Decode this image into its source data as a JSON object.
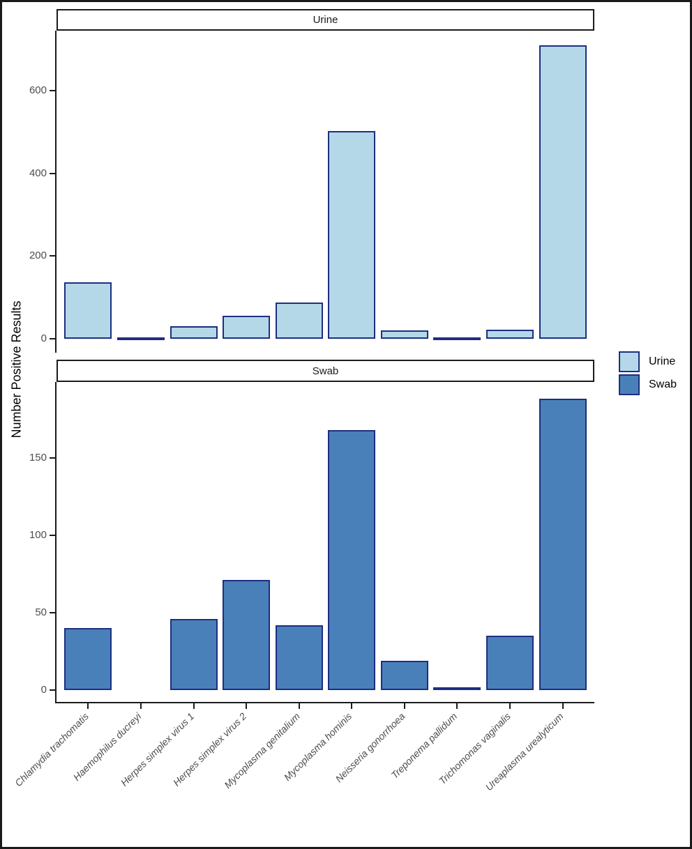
{
  "chart_data": {
    "type": "bar",
    "title": "",
    "xlabel": "",
    "ylabel": "Number Positive Results",
    "grid": false,
    "categories": [
      "Chlamydia trachomatis",
      "Haemophilus ducreyi",
      "Herpes simplex virus 1",
      "Herpes simplex virus 2",
      "Mycoplasma genitalium",
      "Mycoplasma hominis",
      "Neisseria gonorrhoea",
      "Treponema pallidum",
      "Trichomonas vaginalis",
      "Ureaplasma urealyticum"
    ],
    "facets": [
      {
        "name": "Urine",
        "color": "#B5D8E8",
        "values": [
          137,
          1,
          31,
          56,
          87,
          503,
          20,
          2,
          22,
          710
        ],
        "yticks": [
          0,
          200,
          400,
          600
        ],
        "ylim": [
          0,
          745
        ]
      },
      {
        "name": "Swab",
        "color": "#4A80B9",
        "values": [
          40,
          0,
          46,
          71,
          42,
          168,
          19,
          2,
          35,
          188
        ],
        "yticks": [
          0,
          50,
          100,
          150
        ],
        "ylim": [
          0,
          199
        ]
      }
    ],
    "legend": {
      "position": "right",
      "entries": [
        {
          "label": "Urine",
          "color": "#B5D8E8"
        },
        {
          "label": "Swab",
          "color": "#4A80B9"
        }
      ]
    },
    "bar_border_color": "#1D2E80",
    "axis_color": "#1A1A1A",
    "tick_label_color": "#4D4D4D"
  }
}
